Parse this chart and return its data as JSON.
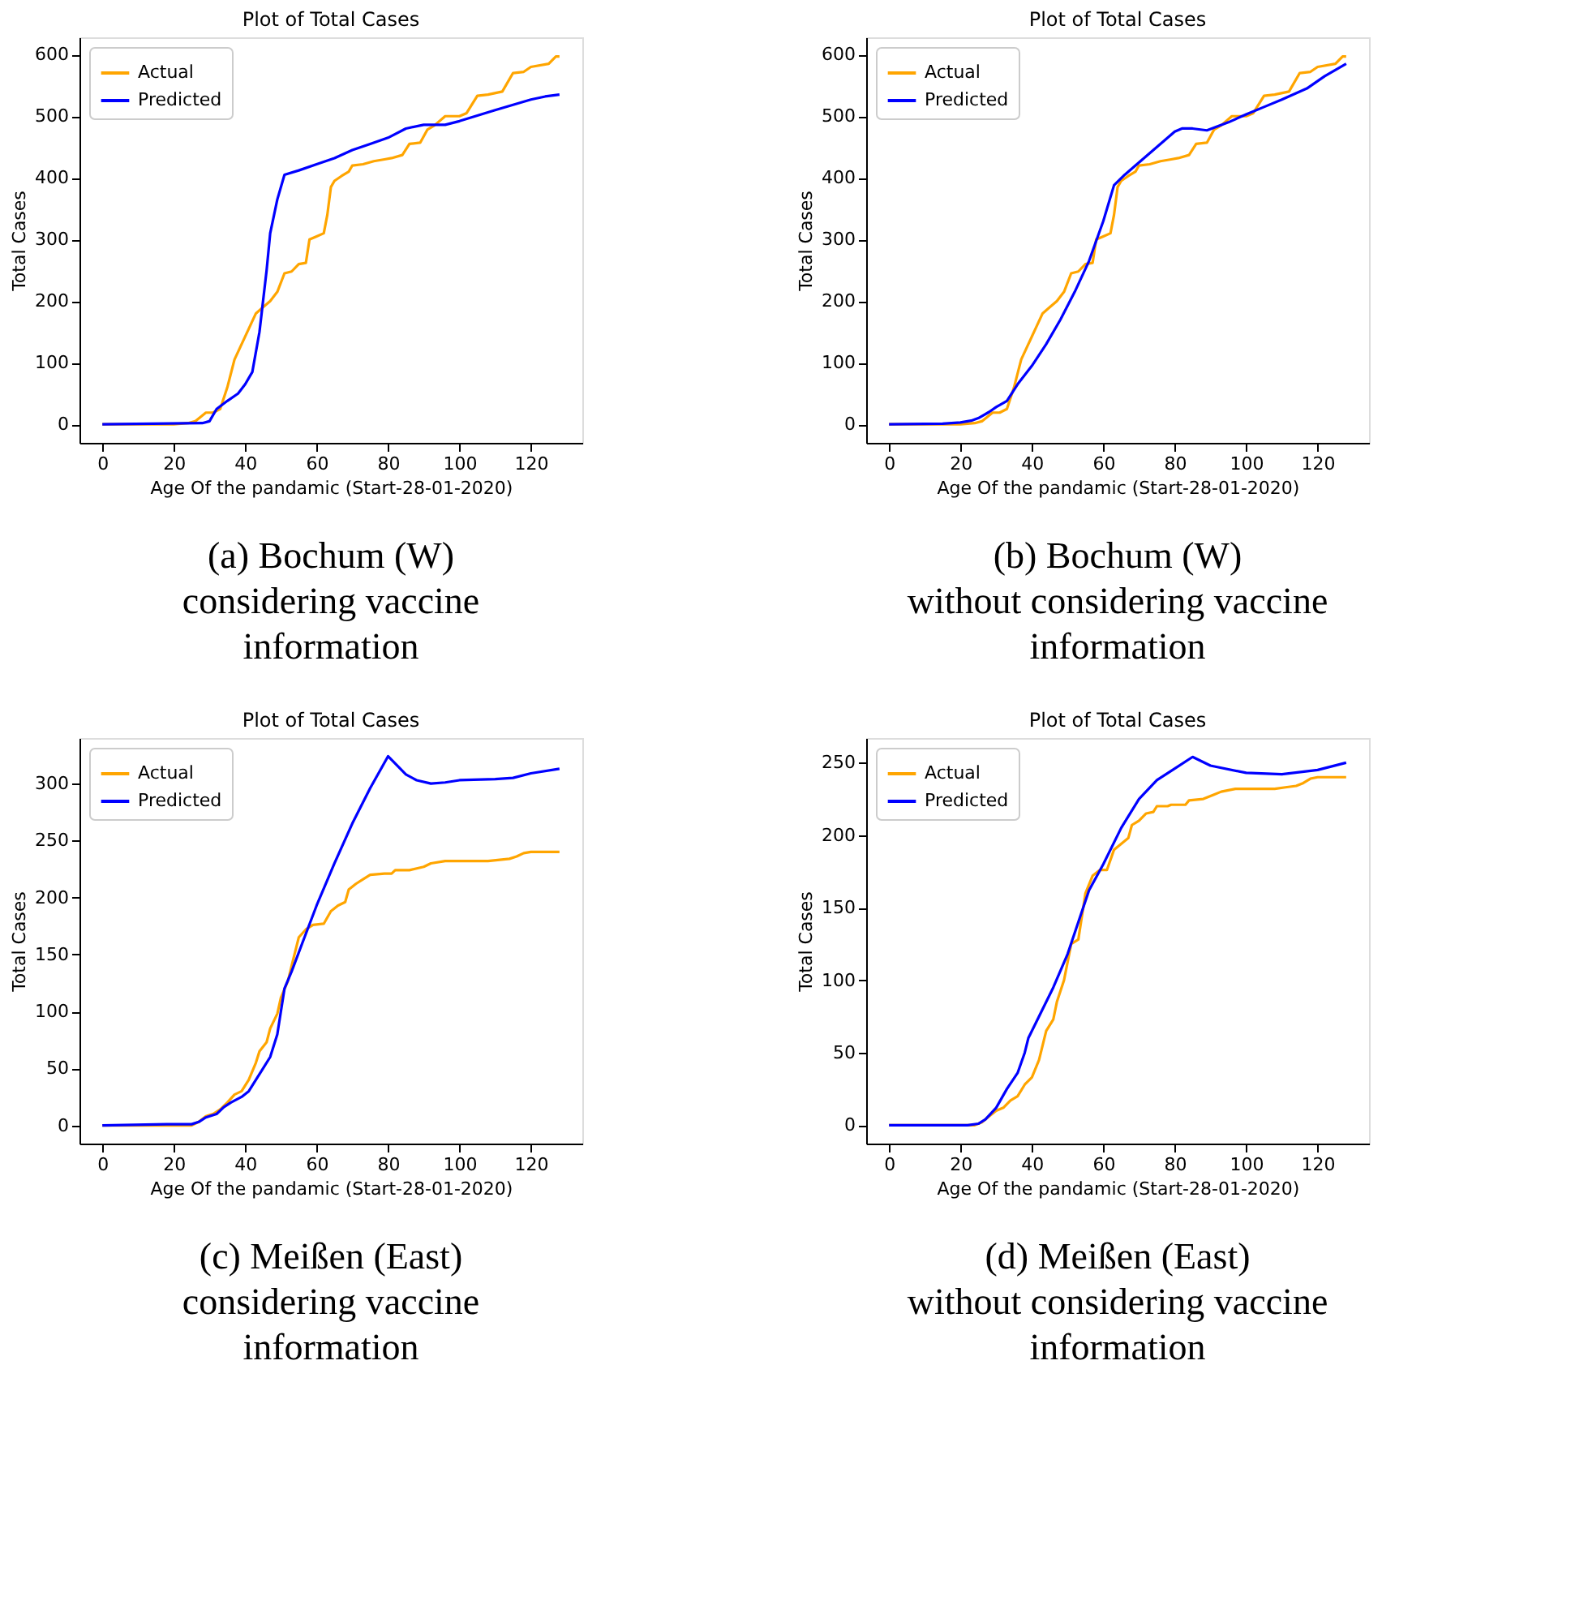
{
  "chart_data": [
    {
      "type": "line",
      "title": "Plot of Total Cases",
      "xlabel": "Age Of the pandamic (Start-28-01-2020)",
      "ylabel": "Total Cases",
      "xlim": [
        -6.4,
        134.4
      ],
      "ylim": [
        -30,
        628
      ],
      "xticks": [
        0,
        20,
        40,
        60,
        80,
        100,
        120
      ],
      "yticks": [
        0,
        100,
        200,
        300,
        400,
        500,
        600
      ],
      "grid": false,
      "legend": "top left",
      "annotations": [
        "(a) Bochum (W)\nconsidering vaccine\ninformation"
      ],
      "series": [
        {
          "name": "Actual",
          "color": "#ffa500",
          "x": [
            0,
            20,
            24,
            26,
            29,
            31,
            33,
            35,
            37,
            39,
            41,
            43,
            45,
            47,
            49,
            51,
            53,
            55,
            57,
            58,
            60,
            62,
            63,
            64,
            65,
            67,
            69,
            70,
            73,
            76,
            79,
            81,
            84,
            86,
            89,
            91,
            93,
            96,
            100,
            102,
            105,
            108,
            112,
            115,
            118,
            120,
            125,
            127,
            128
          ],
          "values": [
            0,
            0,
            2,
            5,
            19,
            19,
            25,
            60,
            105,
            130,
            155,
            180,
            190,
            200,
            215,
            245,
            248,
            260,
            262,
            300,
            305,
            310,
            340,
            385,
            395,
            403,
            410,
            420,
            422,
            427,
            430,
            432,
            437,
            455,
            457,
            478,
            485,
            500,
            500,
            505,
            533,
            535,
            540,
            570,
            572,
            580,
            585,
            597,
            597
          ]
        },
        {
          "name": "Predicted",
          "color": "#0000ff",
          "x": [
            0,
            28,
            30,
            32,
            35,
            38,
            40,
            42,
            44,
            46,
            47,
            49,
            51,
            55,
            60,
            65,
            70,
            75,
            80,
            85,
            90,
            96,
            100,
            110,
            120,
            124,
            128
          ],
          "values": [
            0,
            2,
            5,
            25,
            38,
            50,
            65,
            85,
            150,
            250,
            310,
            365,
            405,
            412,
            422,
            432,
            445,
            455,
            465,
            480,
            486,
            486,
            492,
            510,
            527,
            532,
            535
          ]
        }
      ]
    },
    {
      "type": "line",
      "title": "Plot of Total Cases",
      "xlabel": "Age Of the pandamic (Start-28-01-2020)",
      "ylabel": "Total Cases",
      "xlim": [
        -6.4,
        134.4
      ],
      "ylim": [
        -30,
        628
      ],
      "xticks": [
        0,
        20,
        40,
        60,
        80,
        100,
        120
      ],
      "yticks": [
        0,
        100,
        200,
        300,
        400,
        500,
        600
      ],
      "grid": false,
      "legend": "top left",
      "annotations": [
        "(b) Bochum (W)\nwithout considering vaccine\ninformation"
      ],
      "series": [
        {
          "name": "Actual",
          "color": "#ffa500",
          "x": [
            0,
            20,
            24,
            26,
            29,
            31,
            33,
            35,
            37,
            39,
            41,
            43,
            45,
            47,
            49,
            51,
            53,
            55,
            57,
            58,
            60,
            62,
            63,
            64,
            65,
            67,
            69,
            70,
            73,
            76,
            79,
            81,
            84,
            86,
            89,
            91,
            93,
            96,
            100,
            102,
            105,
            108,
            112,
            115,
            118,
            120,
            125,
            127,
            128
          ],
          "values": [
            0,
            0,
            2,
            5,
            19,
            19,
            25,
            60,
            105,
            130,
            155,
            180,
            190,
            200,
            215,
            245,
            248,
            260,
            262,
            300,
            305,
            310,
            340,
            385,
            395,
            403,
            410,
            420,
            422,
            427,
            430,
            432,
            437,
            455,
            457,
            478,
            485,
            500,
            500,
            505,
            533,
            535,
            540,
            570,
            572,
            580,
            585,
            597,
            597
          ]
        },
        {
          "name": "Predicted",
          "color": "#0000ff",
          "x": [
            0,
            15,
            20,
            23,
            25,
            28,
            30,
            33,
            36,
            40,
            44,
            48,
            52,
            56,
            60,
            63,
            66,
            70,
            75,
            80,
            82,
            85,
            89,
            95,
            100,
            105,
            110,
            117,
            122,
            128
          ],
          "values": [
            0,
            1,
            3,
            6,
            10,
            20,
            28,
            38,
            65,
            95,
            130,
            170,
            215,
            265,
            330,
            388,
            405,
            425,
            450,
            475,
            480,
            480,
            477,
            490,
            503,
            515,
            527,
            545,
            565,
            585
          ]
        }
      ]
    },
    {
      "type": "line",
      "title": "Plot of Total Cases",
      "xlabel": "Age Of the pandamic (Start-28-01-2020)",
      "ylabel": "Total Cases",
      "xlim": [
        -6.4,
        134.4
      ],
      "ylim": [
        -16,
        340
      ],
      "xticks": [
        0,
        20,
        40,
        60,
        80,
        100,
        120
      ],
      "yticks": [
        0,
        50,
        100,
        150,
        200,
        250,
        300
      ],
      "grid": false,
      "legend": "top left",
      "annotations": [
        "(c) Meißen (East)\nconsidering vaccine\ninformation"
      ],
      "series": [
        {
          "name": "Actual",
          "color": "#ffa500",
          "x": [
            0,
            25,
            27,
            29,
            31,
            33,
            35,
            37,
            39,
            41,
            43,
            44,
            46,
            47,
            49,
            50,
            52,
            53,
            55,
            57,
            59,
            62,
            64,
            66,
            68,
            69,
            71,
            73,
            75,
            79,
            81,
            82,
            86,
            90,
            92,
            96,
            108,
            114,
            116,
            118,
            120,
            128
          ],
          "values": [
            0,
            0,
            3,
            8,
            10,
            14,
            20,
            27,
            30,
            40,
            55,
            65,
            73,
            85,
            98,
            112,
            127,
            140,
            165,
            172,
            176,
            177,
            188,
            193,
            196,
            207,
            212,
            216,
            220,
            221,
            221,
            224,
            224,
            227,
            230,
            232,
            232,
            234,
            236,
            239,
            240,
            240
          ]
        },
        {
          "name": "Predicted",
          "color": "#0000ff",
          "x": [
            0,
            18,
            25,
            27,
            29,
            32,
            34,
            36,
            39,
            41,
            43,
            45,
            47,
            49,
            50,
            51,
            53,
            56,
            60,
            65,
            70,
            75,
            80,
            85,
            88,
            92,
            96,
            100,
            110,
            115,
            120,
            128
          ],
          "values": [
            0,
            1,
            1,
            3,
            7,
            10,
            16,
            20,
            25,
            30,
            40,
            50,
            60,
            80,
            100,
            120,
            135,
            160,
            193,
            230,
            265,
            296,
            324,
            308,
            303,
            300,
            301,
            303,
            304,
            305,
            309,
            313
          ]
        }
      ]
    },
    {
      "type": "line",
      "title": "Plot of Total Cases",
      "xlabel": "Age Of the pandamic (Start-28-01-2020)",
      "ylabel": "Total Cases",
      "xlim": [
        -6.4,
        134.4
      ],
      "ylim": [
        -12.7,
        267
      ],
      "xticks": [
        0,
        20,
        40,
        60,
        80,
        100,
        120
      ],
      "yticks": [
        0,
        50,
        100,
        150,
        200,
        250
      ],
      "grid": false,
      "legend": "top left",
      "annotations": [
        "(d) Meißen (East)\nwithout considering vaccine\ninformation"
      ],
      "series": [
        {
          "name": "Actual",
          "color": "#ffa500",
          "x": [
            0,
            24,
            26,
            28,
            30,
            32,
            34,
            36,
            38,
            40,
            42,
            44,
            46,
            47,
            49,
            51,
            53,
            55,
            57,
            59,
            61,
            63,
            65,
            67,
            68,
            70,
            72,
            74,
            75,
            78,
            79,
            83,
            84,
            88,
            91,
            93,
            97,
            108,
            111,
            114,
            116,
            118,
            120,
            128
          ],
          "values": [
            0,
            0,
            2,
            6,
            10,
            12,
            17,
            20,
            28,
            33,
            45,
            65,
            73,
            85,
            100,
            125,
            128,
            160,
            172,
            176,
            176,
            190,
            194,
            198,
            207,
            210,
            215,
            216,
            220,
            220,
            221,
            221,
            224,
            225,
            228,
            230,
            232,
            232,
            233,
            234,
            236,
            239,
            240,
            240
          ]
        },
        {
          "name": "Predicted",
          "color": "#0000ff",
          "x": [
            0,
            22,
            25,
            27,
            30,
            33,
            36,
            38,
            39,
            42,
            46,
            50,
            53,
            56,
            60,
            65,
            70,
            75,
            80,
            85,
            90,
            100,
            110,
            120,
            128
          ],
          "values": [
            0,
            0,
            1,
            4,
            12,
            25,
            36,
            50,
            60,
            75,
            95,
            118,
            140,
            162,
            180,
            205,
            225,
            238,
            246,
            254,
            248,
            243,
            242,
            245,
            250
          ]
        }
      ]
    }
  ]
}
